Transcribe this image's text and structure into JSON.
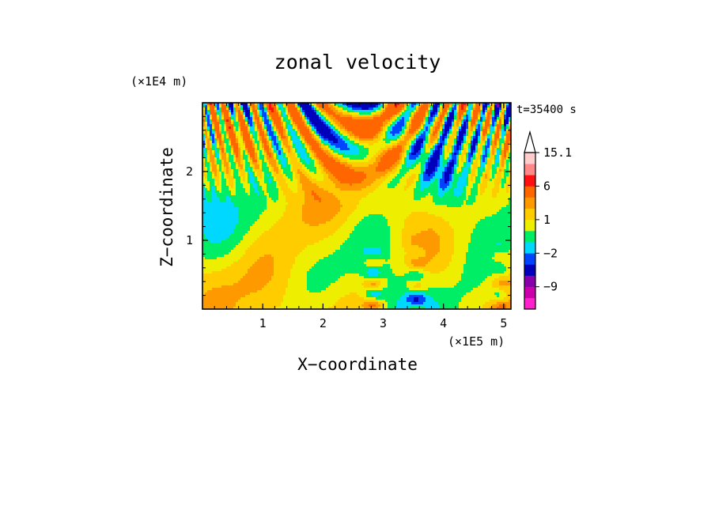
{
  "chart_data": {
    "type": "heatmap",
    "title": "zonal velocity",
    "xlabel": "X−coordinate",
    "ylabel": "Z−coordinate",
    "x_scale_label": "(×1E5 m)",
    "y_scale_label": "(×1E4 m)",
    "time_label": "t=35400 s",
    "xlim": [
      0,
      5.12
    ],
    "ylim": [
      0,
      3.0
    ],
    "x_ticks": [
      1,
      2,
      3,
      4,
      5
    ],
    "y_ticks": [
      1,
      2
    ],
    "x_tick_labels": [
      "1",
      "2",
      "3",
      "4",
      "5"
    ],
    "y_tick_labels": [
      "1",
      "2"
    ],
    "colorbar": {
      "levels": [
        -15.1,
        -12,
        -9,
        -6,
        -3,
        -2,
        -1,
        0,
        1,
        2,
        3,
        6,
        9,
        12,
        15.1
      ],
      "colors": [
        "#ff22cc",
        "#cc00aa",
        "#8800aa",
        "#0000bb",
        "#0044ff",
        "#00d8ff",
        "#00ee66",
        "#eeee00",
        "#ffcc00",
        "#ff9900",
        "#ff6600",
        "#ff1111",
        "#ff8888",
        "#ffcccc"
      ],
      "over_color": "#ffffff",
      "tick_labels": [
        {
          "value": 15.1,
          "label": "15.1"
        },
        {
          "value": 6,
          "label": "6"
        },
        {
          "value": 1,
          "label": "1"
        },
        {
          "value": -2,
          "label": "−2"
        },
        {
          "value": -9,
          "label": "−9"
        }
      ]
    }
  }
}
